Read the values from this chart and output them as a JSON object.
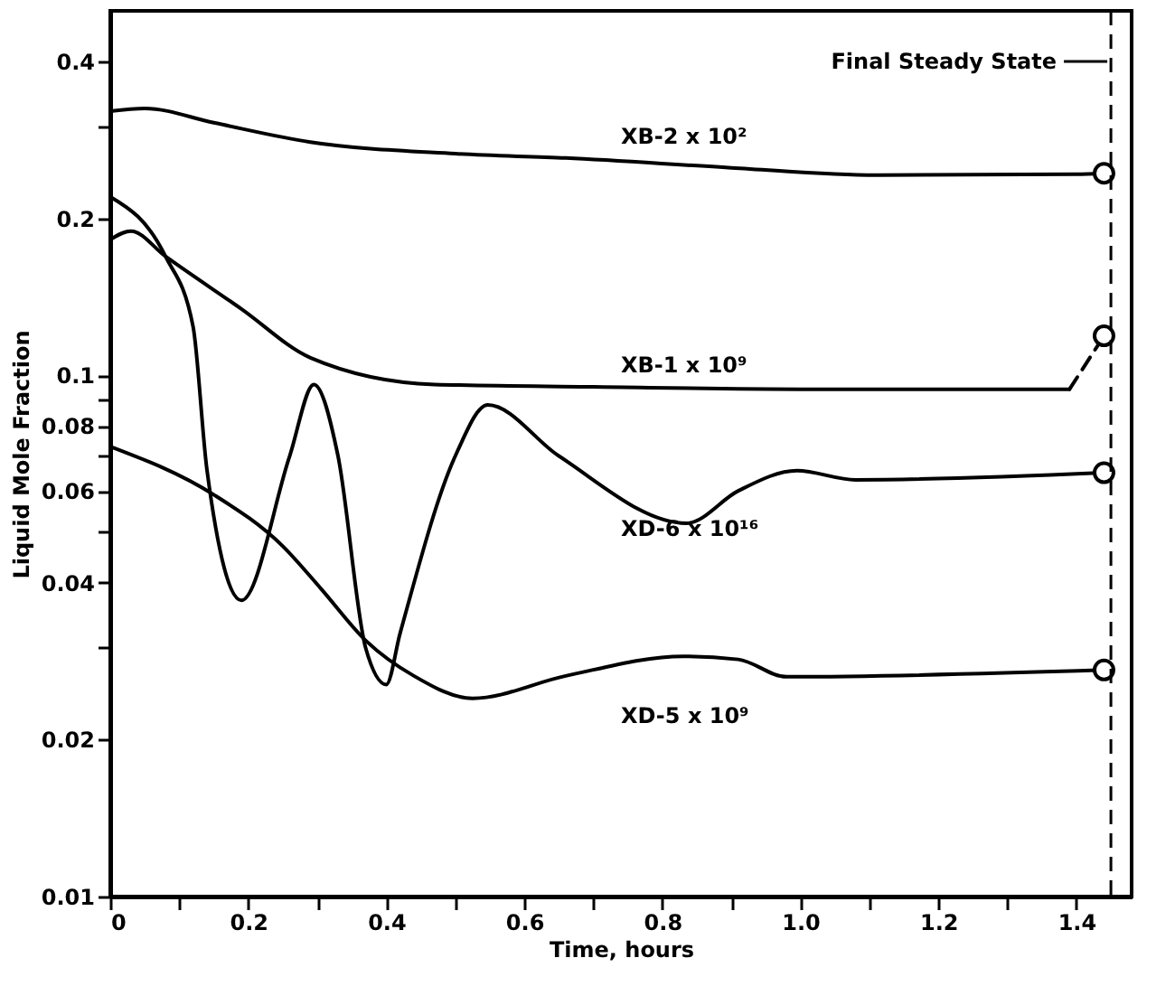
{
  "chart_data": {
    "type": "line",
    "xlabel": "Time, hours",
    "ylabel": "Liquid Mole Fraction",
    "log": "y",
    "grid": false,
    "xlim": [
      0,
      1.48
    ],
    "xticks": [
      {
        "value": 0,
        "label": "0"
      },
      {
        "value": 0.1,
        "label": null
      },
      0.2,
      {
        "value": 0.3,
        "label": null
      },
      0.4,
      {
        "value": 0.5,
        "label": null
      },
      0.6,
      {
        "value": 0.7,
        "label": null
      },
      0.8,
      {
        "value": 0.9,
        "label": null
      },
      {
        "value": 1,
        "label": "1.0"
      },
      {
        "value": 1.1,
        "label": null
      },
      1.2,
      {
        "value": 1.3,
        "label": null
      },
      1.4
    ],
    "ylim": [
      0.01,
      0.5
    ],
    "yticks": [
      0.01,
      0.02,
      {
        "value": 0.03,
        "label": null
      },
      0.04,
      {
        "value": 0.05,
        "label": null
      },
      0.06,
      {
        "value": 0.07,
        "label": null
      },
      0.08,
      {
        "value": 0.09,
        "label": null
      },
      0.1,
      0.2,
      {
        "value": 0.3,
        "label": null
      },
      0.4
    ],
    "series": [
      {
        "name": "XB-2 x 10²",
        "color": "#000000",
        "marker": "none",
        "line_style": "solid",
        "x": [
          0,
          0.05,
          0.15,
          0.29,
          0.5,
          0.66,
          0.9,
          1.11,
          1.4,
          1.44
        ],
        "values": [
          0.321,
          0.325,
          0.305,
          0.28,
          0.266,
          0.261,
          0.25,
          0.242,
          0.243,
          0.244
        ]
      },
      {
        "name": "XB-1 x 10⁹",
        "color": "#000000",
        "marker": "none",
        "line_style": "solid",
        "x": [
          0,
          0.03,
          0.08,
          0.19,
          0.29,
          0.47,
          0.7,
          1.0,
          1.39
        ],
        "values": [
          0.182,
          0.189,
          0.169,
          0.134,
          0.108,
          0.096,
          0.095,
          0.094,
          0.094
        ]
      },
      {
        "color": "#000000",
        "marker": "none",
        "line_style": "dashed",
        "x": [
          1.39,
          1.44
        ],
        "values": [
          0.094,
          0.119
        ]
      },
      {
        "name": "XD-6 x 10¹⁶",
        "color": "#000000",
        "marker": "none",
        "line_style": "solid",
        "x": [
          0,
          0.08,
          0.12,
          0.14,
          0.19,
          0.26,
          0.295,
          0.33,
          0.37,
          0.4,
          0.42,
          0.5,
          0.547,
          0.65,
          0.835,
          0.91,
          0.995,
          1.08,
          1.44
        ],
        "values": [
          0.22,
          0.169,
          0.124,
          0.066,
          0.037,
          0.07,
          0.096,
          0.07,
          0.03,
          0.0255,
          0.032,
          0.07,
          0.0877,
          0.07,
          0.052,
          0.06,
          0.0656,
          0.063,
          0.065
        ]
      },
      {
        "name": "XD-5 x 10⁹",
        "color": "#000000",
        "marker": "none",
        "line_style": "solid",
        "x": [
          0,
          0.15,
          0.25,
          0.305,
          0.37,
          0.44,
          0.525,
          0.66,
          0.83,
          0.91,
          0.98,
          1.44
        ],
        "values": [
          0.073,
          0.059,
          0.047,
          0.039,
          0.031,
          0.0265,
          0.024,
          0.0265,
          0.0289,
          0.0285,
          0.0264,
          0.0272
        ]
      },
      {
        "type": "scatter",
        "color": "#000000",
        "marker": "circle",
        "x": [
          1.44,
          1.44,
          1.44,
          1.44
        ],
        "values": [
          0.244,
          0.119,
          0.065,
          0.0272
        ]
      }
    ],
    "ref_lines": [
      {
        "axis": "x",
        "value": 1.45,
        "label": "Final Steady State",
        "line_style": "dashed",
        "color": "#000000"
      }
    ]
  }
}
